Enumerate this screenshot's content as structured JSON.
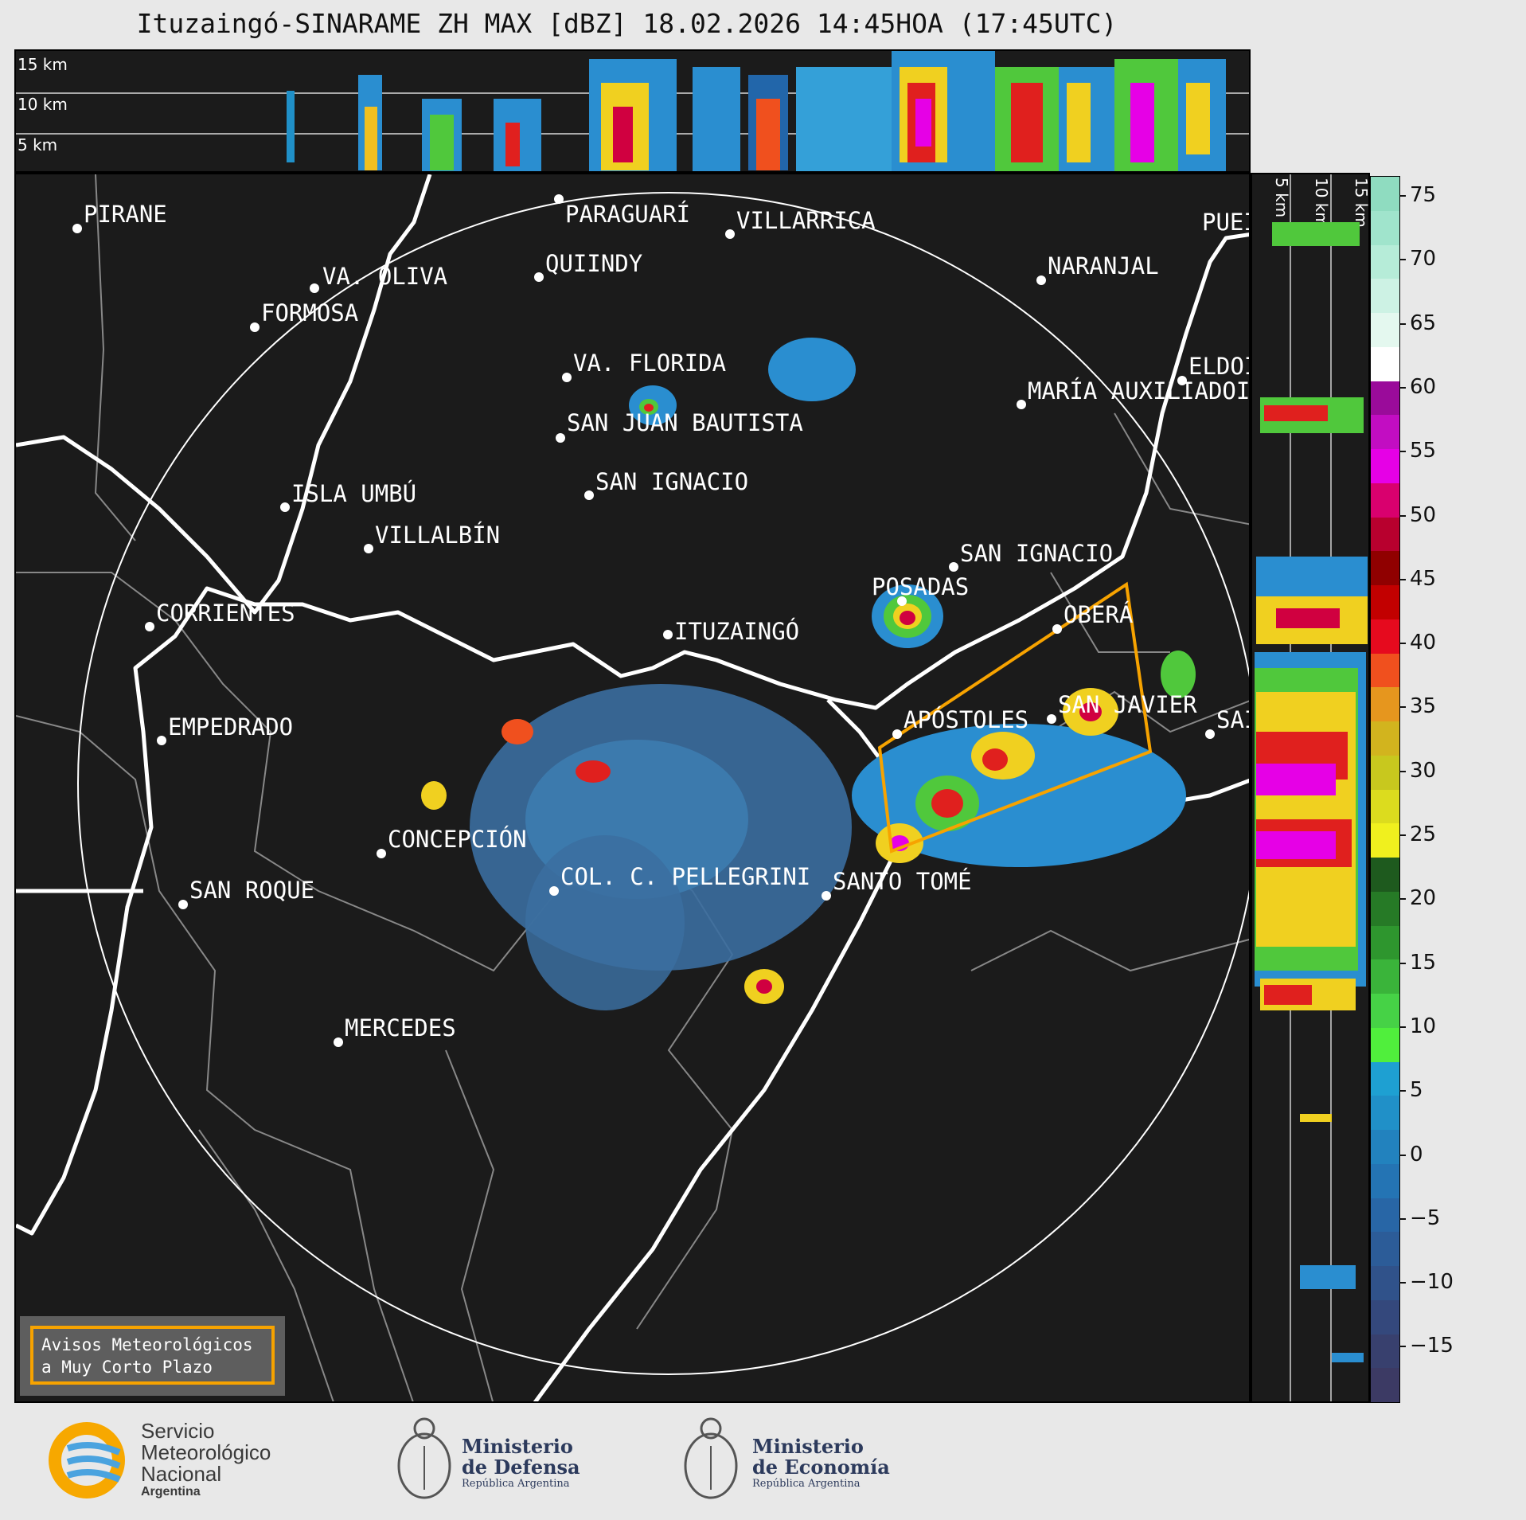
{
  "title": "Ituzaingó-SINARAME ZH MAX [dBZ] 18.02.2026 14:45HOA (17:45UTC)",
  "top_panel": {
    "altitude_labels": [
      "15 km",
      "10 km",
      "5 km"
    ]
  },
  "side_panel": {
    "altitude_labels": [
      "5 km",
      "10 km",
      "15 km"
    ]
  },
  "map": {
    "radar_site": "ITUZAINGÓ",
    "cities": [
      {
        "name": "PARAGUARÍ"
      },
      {
        "name": "VILLARRICA"
      },
      {
        "name": "PIRANE"
      },
      {
        "name": "VA. OLIVA"
      },
      {
        "name": "QUIINDY"
      },
      {
        "name": "FORMOSA"
      },
      {
        "name": "NARANJAL"
      },
      {
        "name": "VA. FLORIDA"
      },
      {
        "name": "ELDOI"
      },
      {
        "name": "MARÍA AUXILIADOI"
      },
      {
        "name": "SAN JUAN BAUTISTA"
      },
      {
        "name": "SAN IGNACIO"
      },
      {
        "name": "ISLA UMBÚ"
      },
      {
        "name": "VILLALBÍN"
      },
      {
        "name": "SAN IGNACIO"
      },
      {
        "name": "POSADAS"
      },
      {
        "name": "CORRIENTES"
      },
      {
        "name": "OBERÁ"
      },
      {
        "name": "ITUZAINGÓ"
      },
      {
        "name": "EMPEDRADO"
      },
      {
        "name": "APÓSTOLES"
      },
      {
        "name": "SAN JAVIER"
      },
      {
        "name": "SAI"
      },
      {
        "name": "CONCEPCIÓN"
      },
      {
        "name": "COL. C. PELLEGRINI"
      },
      {
        "name": "SANTO TOMÉ"
      },
      {
        "name": "SAN ROQUE"
      },
      {
        "name": "MERCEDES"
      },
      {
        "name": "PUEI"
      }
    ]
  },
  "colorbar": {
    "unit": "dBZ",
    "ticks": [
      "75",
      "70",
      "65",
      "60",
      "55",
      "50",
      "45",
      "40",
      "35",
      "30",
      "25",
      "20",
      "15",
      "10",
      "5",
      "0",
      "−5",
      "−10",
      "−15"
    ],
    "colors": [
      "#8fdcc0",
      "#a0e4cc",
      "#b6ecd8",
      "#cdf2e4",
      "#e4f8ef",
      "#ffffff",
      "#9a0b9a",
      "#c20dc2",
      "#e600e6",
      "#d9006e",
      "#b8002e",
      "#900000",
      "#c20000",
      "#e60a1e",
      "#f0501e",
      "#e6961e",
      "#d2b41e",
      "#c8c81e",
      "#dcdc1e",
      "#f0f01e",
      "#1e5a1e",
      "#267a26",
      "#2e962e",
      "#3ab43a",
      "#46d246",
      "#50ef3c",
      "#1ea0d2",
      "#2090c8",
      "#2282be",
      "#2474b4",
      "#2866a6",
      "#2c5c98",
      "#30528a",
      "#34487c",
      "#38406e",
      "#3c3a64"
    ]
  },
  "warning_box": {
    "line1": "Avisos Meteorológicos",
    "line2": "a Muy Corto Plazo"
  },
  "footer": {
    "smn": {
      "line1": "Servicio",
      "line2": "Meteorológico",
      "line3": "Nacional",
      "line4": "Argentina"
    },
    "defensa": {
      "line1": "Ministerio",
      "line2": "de Defensa",
      "line3": "República Argentina"
    },
    "economia": {
      "line1": "Ministerio",
      "line2": "de Economía",
      "line3": "República Argentina"
    }
  }
}
